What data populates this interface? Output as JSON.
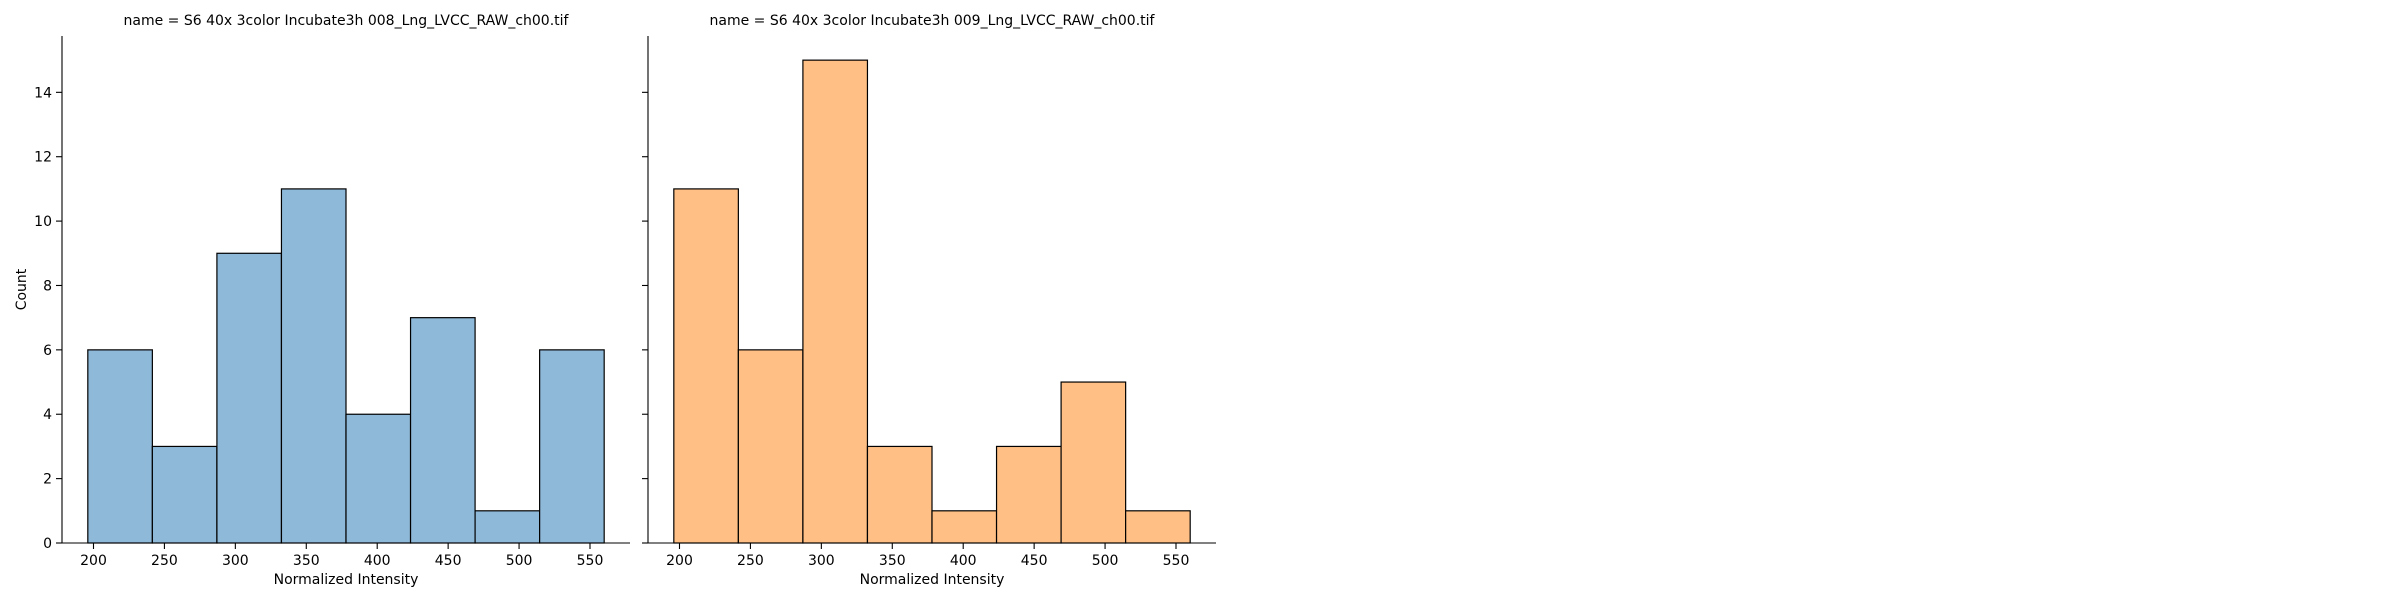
{
  "chart_data": [
    {
      "type": "bar",
      "title": "name = S6 40x 3color Incubate3h 008_Lng_LVCC_RAW_ch00.tif",
      "xlabel": "Normalized Intensity",
      "ylabel": "Count",
      "bin_edges": [
        196,
        241.5,
        287,
        332.5,
        378,
        423.5,
        469,
        514.5,
        560
      ],
      "values": [
        6,
        3,
        9,
        11,
        4,
        7,
        1,
        6
      ],
      "xlim": [
        177.8,
        578.2
      ],
      "ylim": [
        0,
        15.75
      ],
      "xticks": [
        200,
        250,
        300,
        350,
        400,
        450,
        500,
        550
      ],
      "yticks": [
        0,
        2,
        4,
        6,
        8,
        10,
        12,
        14
      ],
      "color": "#8fb9d9",
      "grid": false
    },
    {
      "type": "bar",
      "title": "name = S6 40x 3color Incubate3h 009_Lng_LVCC_RAW_ch00.tif",
      "xlabel": "Normalized Intensity",
      "ylabel": "",
      "bin_edges": [
        196,
        241.5,
        287,
        332.5,
        378,
        423.5,
        469,
        514.5,
        560
      ],
      "values": [
        11,
        6,
        15,
        3,
        1,
        3,
        5,
        1
      ],
      "xlim": [
        177.8,
        578.2
      ],
      "ylim": [
        0,
        15.75
      ],
      "xticks": [
        200,
        250,
        300,
        350,
        400,
        450,
        500,
        550
      ],
      "yticks": [
        0,
        2,
        4,
        6,
        8,
        10,
        12,
        14
      ],
      "color": "#ffbf85",
      "grid": false
    }
  ]
}
